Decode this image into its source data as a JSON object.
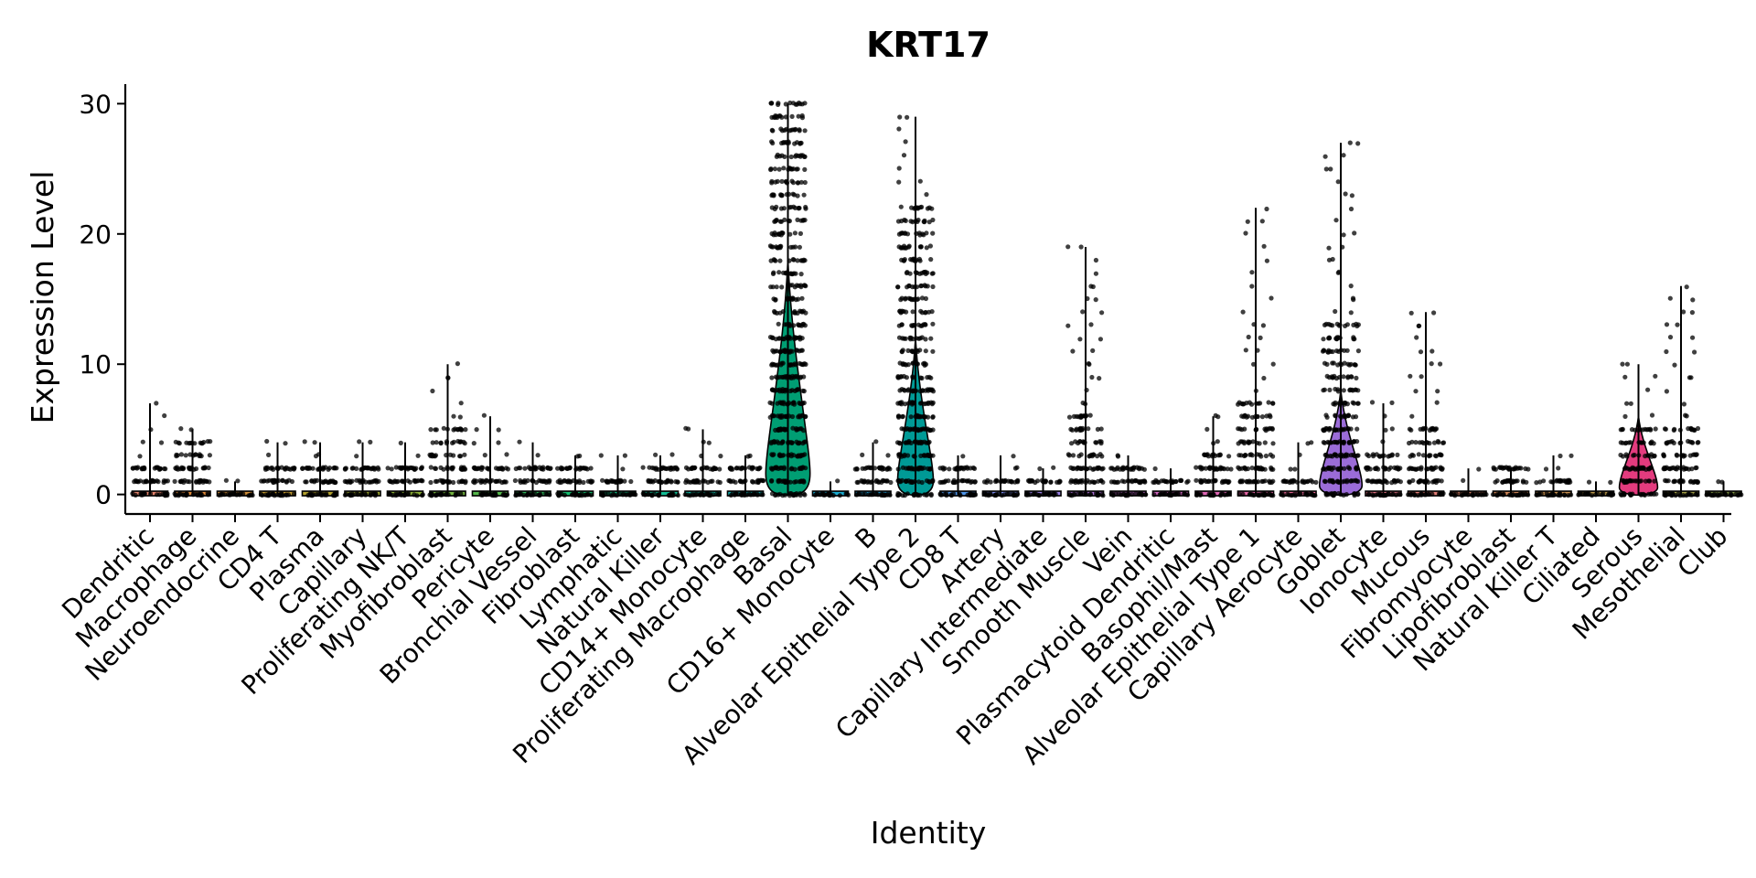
{
  "chart_data": {
    "type": "violin",
    "title": "KRT17",
    "xlabel": "Identity",
    "ylabel": "Expression Level",
    "ylim": [
      -1.5,
      31.5
    ],
    "yticks": [
      0,
      10,
      20,
      30
    ],
    "grid": false,
    "legend": "none",
    "categories": [
      "Dendritic",
      "Macrophage",
      "Neuroendocrine",
      "CD4 T",
      "Plasma",
      "Capillary",
      "Proliferating NK/T",
      "Myofibroblast",
      "Pericyte",
      "Bronchial Vessel",
      "Fibroblast",
      "Lymphatic",
      "Natural Killer",
      "CD14+ Monocyte",
      "Proliferating Macrophage",
      "Basal",
      "CD16+ Monocyte",
      "B",
      "Alveolar Epithelial Type 2",
      "CD8 T",
      "Artery",
      "Capillary Intermediate",
      "Smooth Muscle",
      "Vein",
      "Plasmacytoid Dendritic",
      "Basophil/Mast",
      "Alveolar Epithelial Type 1",
      "Capillary Aerocyte",
      "Goblet",
      "Ionocyte",
      "Mucous",
      "Fibromyocyte",
      "Lipofibroblast",
      "Natural Killer T",
      "Ciliated",
      "Serous",
      "Mesothelial",
      "Club"
    ],
    "max_values": [
      7,
      5,
      1,
      4,
      4,
      4,
      4,
      10,
      6,
      4,
      3,
      3,
      3,
      5,
      3,
      30,
      1,
      4,
      29,
      3,
      3,
      2,
      19,
      3,
      2,
      6,
      22,
      4,
      27,
      7,
      14,
      2,
      2,
      3,
      1,
      10,
      16,
      1
    ],
    "dense_max": [
      2,
      4,
      0,
      2,
      2,
      2,
      2,
      5,
      2,
      2,
      2,
      1,
      2,
      2,
      2,
      30,
      0,
      2,
      22,
      2,
      1,
      1,
      6,
      2,
      1,
      3,
      7,
      1,
      13,
      3,
      5,
      0,
      2,
      1,
      0,
      5,
      5,
      0
    ],
    "violin_colors": [
      "#e8866f",
      "#e08a3a",
      "#d4913a",
      "#c39a30",
      "#b3a12e",
      "#9fa830",
      "#8aad35",
      "#72b23e",
      "#55b64b",
      "#2fb95c",
      "#14ba6d",
      "#10bb80",
      "#12bb93",
      "#14b9a5",
      "#16b6b7",
      "#009e73",
      "#1bacd1",
      "#22a4dc",
      "#009a96",
      "#4f95e8",
      "#7a8ae8",
      "#9a80e4",
      "#b377dc",
      "#c66fd1",
      "#d569c4",
      "#df66b5",
      "#e566a5",
      "#e86995",
      "#9b6cd8",
      "#e87485",
      "#e27e76",
      "#dc8468",
      "#d68a5a",
      "#c8904f",
      "#b8964a",
      "#e33b7e",
      "#a09c46",
      "#8a9e4a"
    ],
    "violin_extents": [
      {
        "name": "Basal",
        "top": 18,
        "halfwidth": 0.52
      },
      {
        "name": "Alveolar Epithelial Type 2",
        "top": 12,
        "halfwidth": 0.42
      },
      {
        "name": "Goblet",
        "top": 8,
        "halfwidth": 0.5
      },
      {
        "name": "Serous",
        "top": 6,
        "halfwidth": 0.45
      }
    ]
  }
}
